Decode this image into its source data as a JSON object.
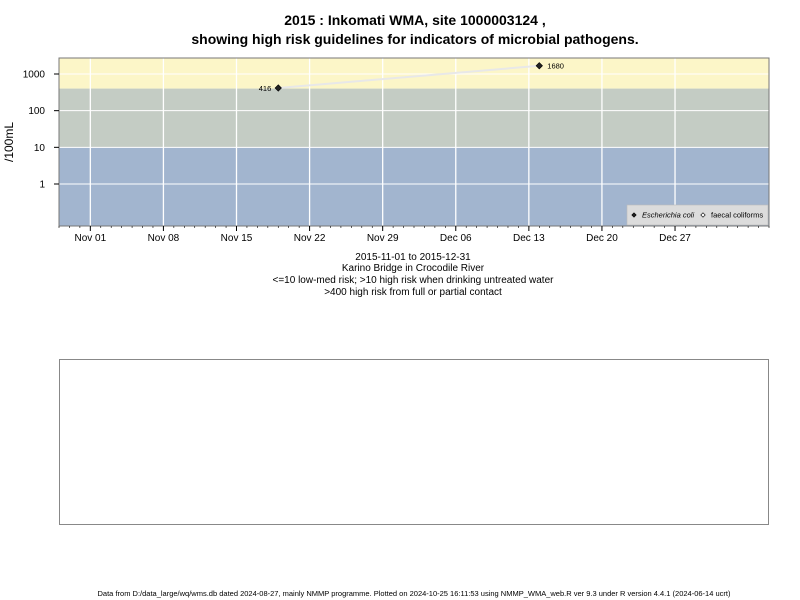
{
  "chart_data": {
    "type": "scatter",
    "title": "2015 : Inkomati WMA, site 1000003124 ,",
    "subtitle": "showing high risk guidelines for indicators of microbial pathogens.",
    "ylabel": "/100mL",
    "y_scale": "log",
    "y_ticks": [
      "1",
      "10",
      "100",
      "1000"
    ],
    "x_ticks": [
      "Nov 01",
      "Nov 08",
      "Nov 15",
      "Nov 22",
      "Nov 29",
      "Dec 06",
      "Dec 13",
      "Dec 20",
      "Dec 27"
    ],
    "xlim": [
      "2015-10-29",
      "2016-01-05"
    ],
    "guideline_bands": [
      {
        "from": 400,
        "to": 1000000000.0,
        "color": "#fcf6c8"
      },
      {
        "from": 10,
        "to": 400,
        "color": "#c4ccc4"
      },
      {
        "from": 0,
        "to": 10,
        "color": "#a2b5cf"
      }
    ],
    "series": [
      {
        "name": "Escherichia coli",
        "marker": "filled-diamond",
        "points": [
          {
            "x": "2015-11-19",
            "y": 416,
            "label": "416"
          },
          {
            "x": "2015-12-14",
            "y": 1680,
            "label": "1680"
          }
        ]
      },
      {
        "name": "faecal coliforms",
        "marker": "open-diamond",
        "points": []
      }
    ],
    "legend": {
      "placement": "bottom-right",
      "items": [
        "Escherichia coli",
        "faecal coliforms"
      ]
    },
    "caption": [
      "2015-11-01 to 2015-12-31",
      "Karino Bridge in Crocodile River",
      "<=10 low-med risk; >10 high risk when drinking untreated water",
      ">400 high risk from full or partial contact"
    ]
  },
  "footer": "Data from D:/data_large/wq/wms.db dated 2024-08-27, mainly NMMP programme. Plotted on 2024-10-25 16:11:53 using NMMP_WMA_web.R ver 9.3 under R version 4.4.1 (2024-06-14 ucrt)"
}
